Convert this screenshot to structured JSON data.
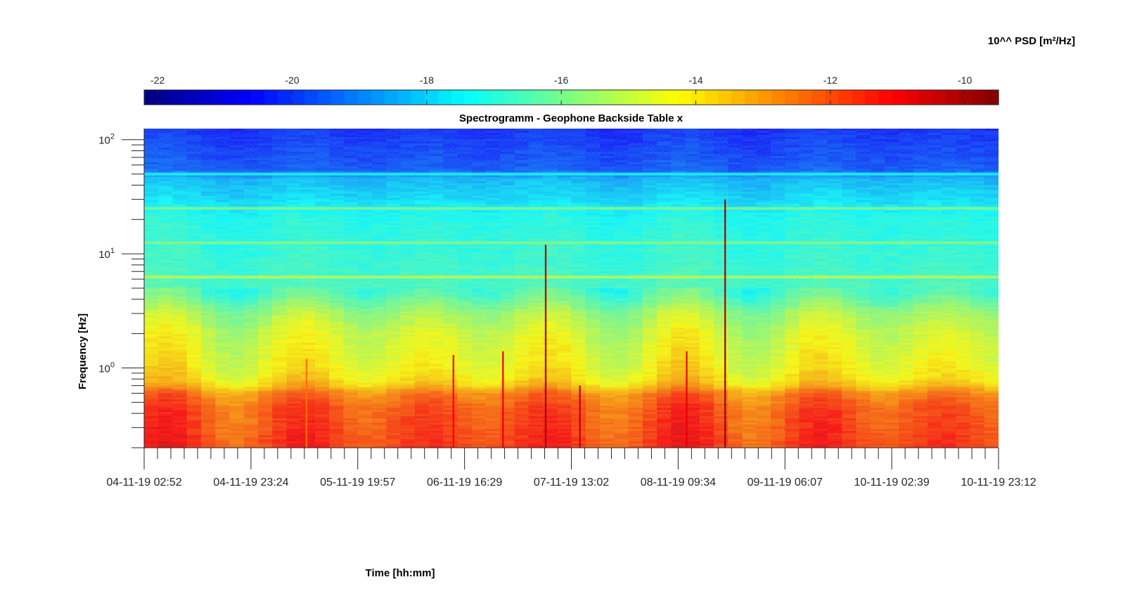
{
  "chart_data": {
    "type": "heatmap",
    "title": "Spectrogramm - Geophone Backside Table x",
    "xlabel": "Time [hh:mm]",
    "ylabel": "Frequency [Hz]",
    "colorbar_label": "10^^ PSD [m²/Hz]",
    "colormap": "jet",
    "colorbar_range": [
      -22.2,
      -9.5
    ],
    "colorbar_ticks": [
      "-22",
      "-20",
      "-18",
      "-16",
      "-14",
      "-12",
      "-10"
    ],
    "colorbar_tick_values": [
      -22,
      -20,
      -18,
      -16,
      -14,
      -12,
      -10
    ],
    "y_scale": "log",
    "ylim": [
      0.2,
      125
    ],
    "y_ticks": [
      {
        "value": 1,
        "base": "10",
        "exp": "0"
      },
      {
        "value": 10,
        "base": "10",
        "exp": "1"
      },
      {
        "value": 100,
        "base": "10",
        "exp": "2"
      }
    ],
    "x_tick_labels": [
      "04-11-19 02:52",
      "04-11-19 23:24",
      "05-11-19 19:57",
      "06-11-19 16:29",
      "07-11-19 13:02",
      "08-11-19 09:34",
      "09-11-19 06:07",
      "10-11-19 02:39",
      "10-11-19 23:12"
    ],
    "x_major_count": 9,
    "x_minor_per_interval": 8,
    "spectral_profile": [
      {
        "freq": 0.2,
        "psd": -11.6
      },
      {
        "freq": 0.3,
        "psd": -11.8
      },
      {
        "freq": 0.45,
        "psd": -12.0
      },
      {
        "freq": 0.6,
        "psd": -12.6
      },
      {
        "freq": 0.7,
        "psd": -13.6
      },
      {
        "freq": 0.8,
        "psd": -14.0
      },
      {
        "freq": 1.0,
        "psd": -14.3
      },
      {
        "freq": 2.0,
        "psd": -14.8
      },
      {
        "freq": 3.0,
        "psd": -15.4
      },
      {
        "freq": 4.5,
        "psd": -16.6
      },
      {
        "freq": 8.0,
        "psd": -16.9
      },
      {
        "freq": 20.0,
        "psd": -17.2
      },
      {
        "freq": 30.0,
        "psd": -17.8
      },
      {
        "freq": 45.0,
        "psd": -18.3
      },
      {
        "freq": 55.0,
        "psd": -19.6
      },
      {
        "freq": 125.0,
        "psd": -20.2
      }
    ],
    "narrowband_lines": [
      {
        "freq": 6.25,
        "psd": -15.0
      },
      {
        "freq": 12.5,
        "psd": -15.8
      },
      {
        "freq": 25.0,
        "psd": -15.9
      },
      {
        "freq": 50.0,
        "psd": -17.4
      }
    ],
    "transient_events": [
      {
        "time": "04-11-19 02:52",
        "offset_fraction": 0.19,
        "fmax": 1.2,
        "psd": -12.5
      },
      {
        "time": "04-11-19 02:52",
        "offset_fraction": 0.362,
        "fmax": 1.3,
        "psd": -11.0
      },
      {
        "time": "04-11-19 02:52",
        "offset_fraction": 0.42,
        "fmax": 1.4,
        "psd": -10.8
      },
      {
        "time": "04-11-19 02:52",
        "offset_fraction": 0.47,
        "fmax": 12.0,
        "psd": -10.0
      },
      {
        "time": "04-11-19 02:52",
        "offset_fraction": 0.51,
        "fmax": 0.7,
        "psd": -10.3
      },
      {
        "time": "04-11-19 02:52",
        "offset_fraction": 0.635,
        "fmax": 1.4,
        "psd": -10.8
      },
      {
        "time": "04-11-19 02:52",
        "offset_fraction": 0.68,
        "fmax": 30.0,
        "psd": -9.8
      }
    ]
  }
}
